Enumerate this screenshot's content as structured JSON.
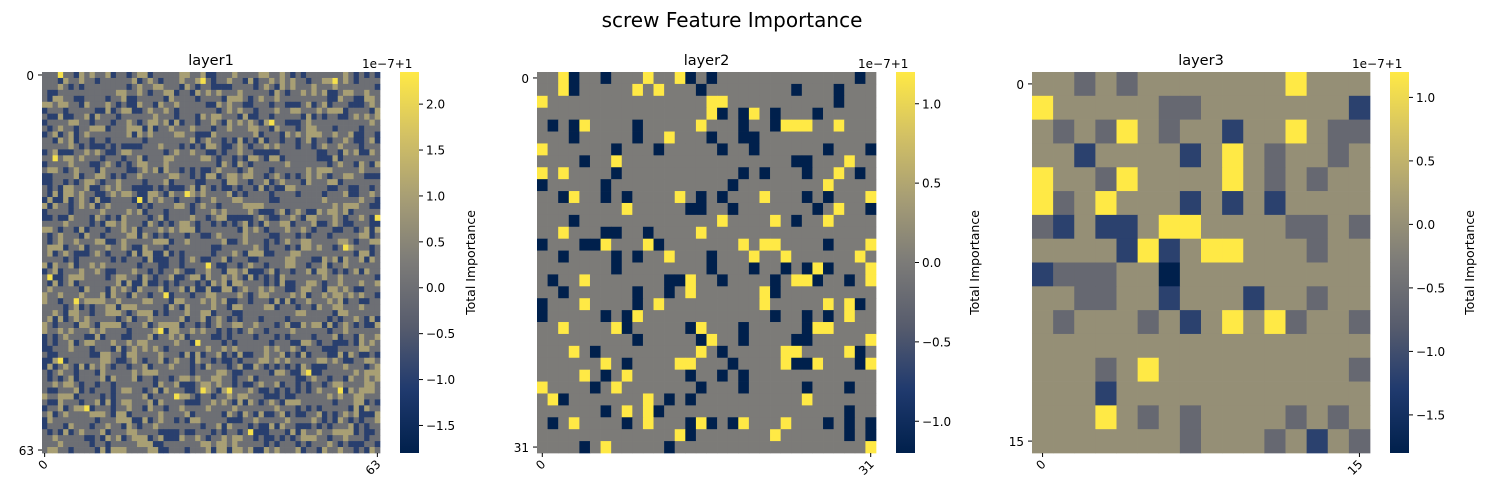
{
  "figure_title": "screw Feature Importance",
  "colormap": {
    "name": "cividis",
    "stops": [
      "#00204c",
      "#203a6e",
      "#575c6d",
      "#7c7b78",
      "#a69d75",
      "#d3c164",
      "#ffe945"
    ]
  },
  "chart_data": [
    {
      "type": "heatmap",
      "title": "layer1",
      "size": 64,
      "xtick_labels": [
        "0",
        "63"
      ],
      "ytick_labels": [
        "0",
        "63"
      ],
      "colorbar": {
        "label": "Total Importance",
        "offset_label": "1e−7+1",
        "range": [
          -1.8,
          2.35
        ],
        "ticks": [
          -1.5,
          -1.0,
          -0.5,
          0.0,
          0.5,
          1.0,
          1.5,
          2.0
        ],
        "tick_labels": [
          "−1.5",
          "−1.0",
          "−0.5",
          "0.0",
          "0.5",
          "1.0",
          "1.5",
          "2.0"
        ]
      },
      "value_distribution": {
        "levels": [
          -1.0,
          0.0,
          1.0,
          2.2
        ],
        "probabilities": [
          0.22,
          0.57,
          0.205,
          0.005
        ]
      }
    },
    {
      "type": "heatmap",
      "title": "layer2",
      "size": 32,
      "xtick_labels": [
        "0",
        "31"
      ],
      "ytick_labels": [
        "0",
        "31"
      ],
      "colorbar": {
        "label": "Total Importance",
        "offset_label": "1e−7+1",
        "range": [
          -1.2,
          1.2
        ],
        "ticks": [
          -1.0,
          -0.5,
          0.0,
          0.5,
          1.0
        ],
        "tick_labels": [
          "−1.0",
          "−0.5",
          "0.0",
          "0.5",
          "1.0"
        ]
      },
      "value_distribution": {
        "levels": [
          -1.2,
          0.0,
          1.2
        ],
        "probabilities": [
          0.12,
          0.78,
          0.1
        ]
      }
    },
    {
      "type": "heatmap",
      "title": "layer3",
      "size": 16,
      "xtick_labels": [
        "0",
        "15"
      ],
      "ytick_labels": [
        "0",
        "15"
      ],
      "colorbar": {
        "label": "Total Importance",
        "offset_label": "1e−7+1",
        "range": [
          -1.8,
          1.2
        ],
        "ticks": [
          -1.5,
          -1.0,
          -0.5,
          0.0,
          0.5,
          1.0
        ],
        "tick_labels": [
          "−1.5",
          "−1.0",
          "−0.5",
          "0.0",
          "0.5",
          "1.0"
        ]
      },
      "grid": [
        [
          0,
          0,
          -0.6,
          0,
          -0.6,
          0,
          0,
          0,
          0,
          0,
          0,
          0,
          1.2,
          0,
          0,
          0
        ],
        [
          1.2,
          0,
          0,
          0,
          0,
          0,
          -0.6,
          -0.6,
          0,
          0,
          0,
          0,
          0,
          0,
          0,
          -1.2
        ],
        [
          0,
          -0.6,
          0,
          -0.6,
          1.2,
          0,
          -0.6,
          0,
          0,
          -1.2,
          0,
          0,
          1.2,
          0,
          -0.6,
          -0.6
        ],
        [
          0,
          0,
          -1.2,
          0,
          0,
          0,
          0,
          -1.2,
          0,
          1.2,
          0,
          -0.6,
          0,
          0,
          -0.6,
          0
        ],
        [
          1.2,
          0,
          0,
          -0.6,
          1.2,
          0,
          0,
          0,
          0,
          1.2,
          0,
          -0.6,
          0,
          -0.6,
          0,
          0
        ],
        [
          1.2,
          -0.6,
          0,
          1.2,
          0,
          0,
          0,
          -1.2,
          0,
          -1.2,
          0,
          -1.2,
          0,
          0,
          0,
          0
        ],
        [
          -0.6,
          -1.2,
          0,
          -1.2,
          -1.2,
          0,
          1.2,
          1.2,
          0,
          0,
          0,
          0,
          -0.6,
          -0.6,
          0,
          -0.6
        ],
        [
          0,
          0,
          0,
          0,
          -1.2,
          1.2,
          -1.2,
          0,
          1.2,
          1.2,
          0,
          0,
          0,
          -0.6,
          0,
          0
        ],
        [
          -1.2,
          -0.6,
          -0.6,
          -0.6,
          0,
          0,
          -1.8,
          0,
          0,
          0,
          0,
          0,
          0,
          0,
          0,
          0
        ],
        [
          0,
          0,
          -0.6,
          -0.6,
          0,
          0,
          -1.2,
          0,
          0,
          0,
          -1.2,
          0,
          0,
          -0.6,
          0,
          0
        ],
        [
          0,
          -0.6,
          0,
          0,
          0,
          -0.6,
          0,
          -1.2,
          0,
          1.2,
          0,
          1.2,
          -0.6,
          0,
          0,
          -0.6
        ],
        [
          0,
          0,
          0,
          0,
          0,
          0,
          0,
          0,
          0,
          0,
          0,
          0,
          0,
          0,
          0,
          0
        ],
        [
          0,
          0,
          0,
          -0.6,
          0,
          1.2,
          0,
          0,
          0,
          0,
          0,
          0,
          0,
          0,
          0,
          -0.6
        ],
        [
          0,
          0,
          0,
          -1.2,
          0,
          0,
          0,
          0,
          0,
          0,
          0,
          0,
          0,
          0,
          0,
          0
        ],
        [
          0,
          0,
          0,
          1.2,
          0,
          -0.6,
          0,
          -0.6,
          0,
          0,
          0,
          0,
          -0.6,
          0,
          -0.6,
          0
        ],
        [
          0,
          0,
          0,
          0,
          0,
          0,
          0,
          -0.6,
          0,
          0,
          0,
          -0.6,
          0,
          -1.2,
          0,
          -0.6
        ]
      ]
    }
  ]
}
